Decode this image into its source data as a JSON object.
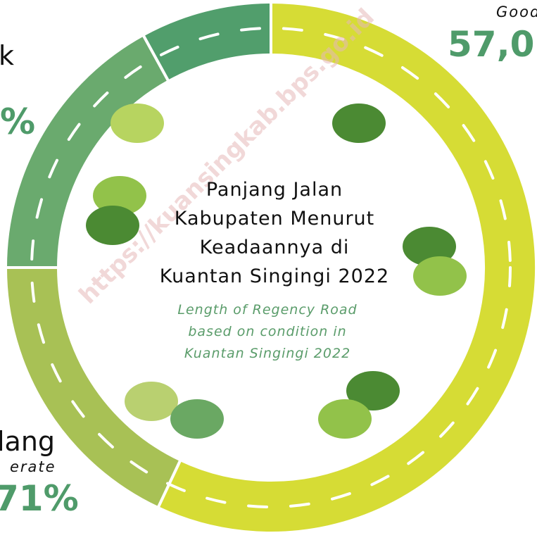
{
  "chart_data": {
    "type": "donut",
    "title_lines": [
      "Panjang Jalan",
      "Kabupaten Menurut",
      "Keadaannya di",
      "Kuantan Singingi 2022"
    ],
    "subtitle_lines": [
      "Length of Regency Road",
      "based on condition in",
      "Kuantan Singingi 2022"
    ],
    "categories": [
      null,
      null,
      null,
      null
    ],
    "values": [
      57,
      18,
      17,
      8
    ],
    "colors": [
      "#d6dc35",
      "#a8c155",
      "#6aaa6e",
      "#519e6c"
    ],
    "annotations": [
      {
        "text": "Good",
        "style": "italic-small"
      },
      {
        "text": "57,0",
        "style": "big-green"
      },
      {
        "text": "k",
        "style": "name"
      },
      {
        "text": "%",
        "style": "big-green"
      },
      {
        "text": "lang",
        "style": "name"
      },
      {
        "text": "erate",
        "style": "italic-small"
      },
      {
        "text": "71%",
        "style": "big-green"
      }
    ],
    "watermark": "https://kuansingkab.bps.go.id"
  }
}
